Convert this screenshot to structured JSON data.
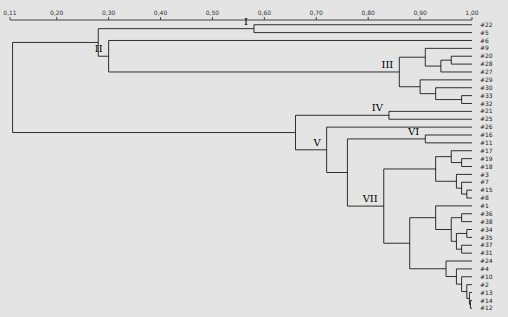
{
  "chart_data": {
    "type": "dendrogram",
    "xlim": [
      0.11,
      1.0
    ],
    "xticks": [
      {
        "value": 0.11,
        "label": "0,11"
      },
      {
        "value": 0.2,
        "label": "0,20"
      },
      {
        "value": 0.3,
        "label": "0,30"
      },
      {
        "value": 0.4,
        "label": "0,40"
      },
      {
        "value": 0.5,
        "label": "0,50"
      },
      {
        "value": 0.6,
        "label": "0,60"
      },
      {
        "value": 0.7,
        "label": "0,70"
      },
      {
        "value": 0.8,
        "label": "0,80"
      },
      {
        "value": 0.9,
        "label": "0,90"
      },
      {
        "value": 1.0,
        "label": "1,00"
      }
    ],
    "color": "#000000",
    "tree": {
      "height": 0.115,
      "children": [
        {
          "height": 0.28,
          "children": [
            {
              "height": 0.58,
              "label": "I",
              "children": [
                {
                  "name": "#22"
                },
                {
                  "name": "#5"
                }
              ]
            },
            {
              "height": 0.3,
              "label": "II",
              "children": [
                {
                  "name": "#6"
                },
                {
                  "height": 0.86,
                  "label": "III",
                  "children": [
                    {
                      "height": 0.91,
                      "children": [
                        {
                          "name": "#9"
                        },
                        {
                          "height": 0.94,
                          "children": [
                            {
                              "height": 0.96,
                              "children": [
                                {
                                  "name": "#20"
                                },
                                {
                                  "name": "#28"
                                }
                              ]
                            },
                            {
                              "name": "#27"
                            }
                          ]
                        }
                      ]
                    },
                    {
                      "height": 0.9,
                      "children": [
                        {
                          "name": "#29"
                        },
                        {
                          "height": 0.93,
                          "children": [
                            {
                              "name": "#30"
                            },
                            {
                              "height": 0.98,
                              "children": [
                                {
                                  "name": "#33"
                                },
                                {
                                  "name": "#32"
                                }
                              ]
                            }
                          ]
                        }
                      ]
                    }
                  ]
                }
              ]
            }
          ]
        },
        {
          "height": 0.66,
          "children": [
            {
              "height": 0.84,
              "label": "IV",
              "children": [
                {
                  "name": "#21"
                },
                {
                  "name": "#25"
                }
              ]
            },
            {
              "height": 0.72,
              "label": "V",
              "children": [
                {
                  "name": "#26"
                },
                {
                  "height": 0.76,
                  "children": [
                    {
                      "height": 0.91,
                      "label": "VI",
                      "children": [
                        {
                          "name": "#16"
                        },
                        {
                          "name": "#11"
                        }
                      ]
                    },
                    {
                      "height": 0.83,
                      "label": "VII",
                      "children": [
                        {
                          "height": 0.93,
                          "children": [
                            {
                              "height": 0.96,
                              "children": [
                                {
                                  "name": "#17"
                                },
                                {
                                  "height": 0.98,
                                  "children": [
                                    {
                                      "name": "#19"
                                    },
                                    {
                                      "name": "#18"
                                    }
                                  ]
                                }
                              ]
                            },
                            {
                              "height": 0.97,
                              "children": [
                                {
                                  "name": "#3"
                                },
                                {
                                  "height": 0.98,
                                  "children": [
                                    {
                                      "name": "#7"
                                    },
                                    {
                                      "height": 0.99,
                                      "children": [
                                        {
                                          "name": "#15"
                                        },
                                        {
                                          "name": "#8"
                                        }
                                      ]
                                    }
                                  ]
                                }
                              ]
                            }
                          ]
                        },
                        {
                          "height": 0.88,
                          "children": [
                            {
                              "height": 0.93,
                              "children": [
                                {
                                  "name": "#1"
                                },
                                {
                                  "height": 0.96,
                                  "children": [
                                    {
                                      "height": 0.98,
                                      "children": [
                                        {
                                          "name": "#36"
                                        },
                                        {
                                          "name": "#38"
                                        }
                                      ]
                                    },
                                    {
                                      "height": 0.97,
                                      "children": [
                                        {
                                          "height": 0.99,
                                          "children": [
                                            {
                                              "name": "#34"
                                            },
                                            {
                                              "name": "#35"
                                            }
                                          ]
                                        },
                                        {
                                          "height": 0.98,
                                          "children": [
                                            {
                                              "name": "#37"
                                            },
                                            {
                                              "name": "#31"
                                            }
                                          ]
                                        }
                                      ]
                                    }
                                  ]
                                }
                              ]
                            },
                            {
                              "height": 0.95,
                              "children": [
                                {
                                  "name": "#24"
                                },
                                {
                                  "height": 0.97,
                                  "children": [
                                    {
                                      "name": "#4"
                                    },
                                    {
                                      "height": 0.98,
                                      "children": [
                                        {
                                          "name": "#10"
                                        },
                                        {
                                          "height": 0.99,
                                          "children": [
                                            {
                                              "name": "#2"
                                            },
                                            {
                                              "height": 0.995,
                                              "children": [
                                                {
                                                  "name": "#13"
                                                },
                                                {
                                                  "height": 0.997,
                                                  "children": [
                                                    {
                                                      "name": "#14"
                                                    },
                                                    {
                                                      "name": "#12"
                                                    }
                                                  ]
                                                }
                                              ]
                                            }
                                          ]
                                        }
                                      ]
                                    }
                                  ]
                                }
                              ]
                            }
                          ]
                        }
                      ]
                    }
                  ]
                }
              ]
            }
          ]
        }
      ]
    }
  }
}
